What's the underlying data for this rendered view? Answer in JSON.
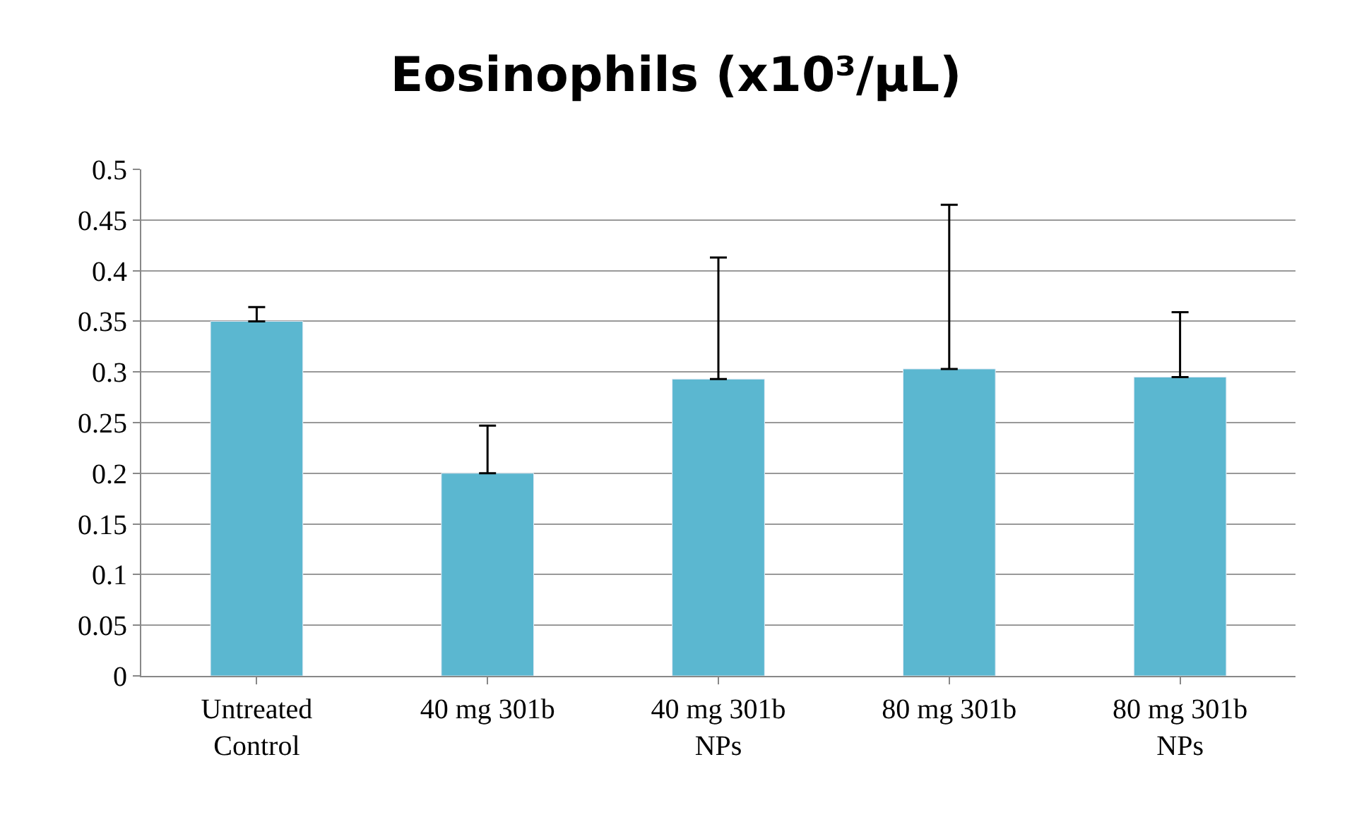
{
  "chart_data": {
    "type": "bar",
    "title": "Eosinophils (x10³/μL)",
    "categories": [
      "Untreated\nControl",
      "40 mg 301b",
      "40 mg 301b\nNPs",
      "80 mg 301b",
      "80 mg 301b\nNPs"
    ],
    "values": [
      0.35,
      0.2,
      0.293,
      0.303,
      0.295
    ],
    "errors": [
      [
        0.35,
        0.364
      ],
      [
        0.2,
        0.247
      ],
      [
        0.293,
        0.413
      ],
      [
        0.303,
        0.465
      ],
      [
        0.295,
        0.359
      ]
    ],
    "color": "#5bb7d0",
    "ylim": [
      0,
      0.5
    ],
    "yticks": [
      0,
      0.05,
      0.1,
      0.15,
      0.2,
      0.25,
      0.3,
      0.35,
      0.4,
      0.45,
      0.5
    ],
    "grid": "y"
  }
}
